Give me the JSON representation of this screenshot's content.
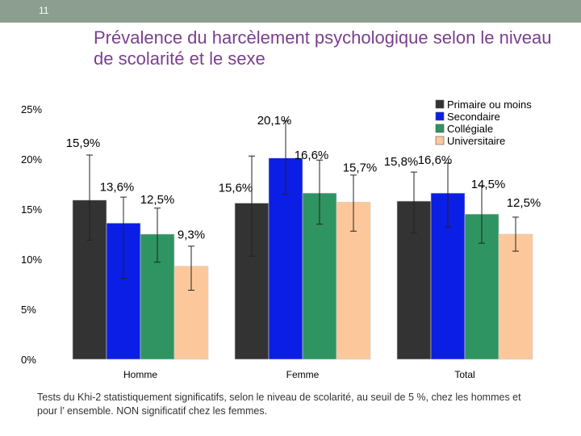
{
  "slide_number": "11",
  "title": "Prévalence du harcèlement psychologique selon le niveau de scolarité et le sexe",
  "footnote": "Tests du Khi-2 statistiquement significatifs, selon le niveau de scolarité, au seuil de 5 %, chez les hommes et pour l’ ensemble. NON significatif chez les femmes.",
  "chart_data": {
    "type": "bar",
    "title": "",
    "xlabel": "",
    "ylabel": "",
    "ylim": [
      0,
      25
    ],
    "yticks": [
      "0%",
      "5%",
      "10%",
      "15%",
      "20%",
      "25%"
    ],
    "categories": [
      "Homme",
      "Femme",
      "Total"
    ],
    "series": [
      {
        "name": "Primaire ou moins",
        "color": "#333333",
        "values": [
          15.9,
          15.6,
          15.8
        ],
        "labels": [
          "15,9%",
          "15,6%",
          "15,8%"
        ],
        "err_low": [
          11.9,
          10.3,
          12.6
        ],
        "err_high": [
          20.4,
          20.3,
          18.7
        ]
      },
      {
        "name": "Secondaire",
        "color": "#0a1ee6",
        "values": [
          13.6,
          20.1,
          16.6
        ],
        "labels": [
          "13,6%",
          "20,1%",
          "16,6%"
        ],
        "err_low": [
          8.1,
          16.5,
          13.2
        ],
        "err_high": [
          16.2,
          23.8,
          19.6
        ]
      },
      {
        "name": "Collégiale",
        "color": "#2e9462",
        "values": [
          12.5,
          16.6,
          14.5
        ],
        "labels": [
          "12,5%",
          "16,6%",
          "14,5%"
        ],
        "err_low": [
          9.7,
          13.5,
          11.6
        ],
        "err_high": [
          15.1,
          19.9,
          17.3
        ]
      },
      {
        "name": "Universitaire",
        "color": "#fcc89b",
        "values": [
          9.3,
          15.7,
          12.5
        ],
        "labels": [
          "9,3%",
          "15,7%",
          "12,5%"
        ],
        "err_low": [
          6.9,
          12.8,
          10.8
        ],
        "err_high": [
          11.3,
          18.4,
          14.2
        ]
      }
    ],
    "legend_position": "top-right",
    "grid": false
  }
}
